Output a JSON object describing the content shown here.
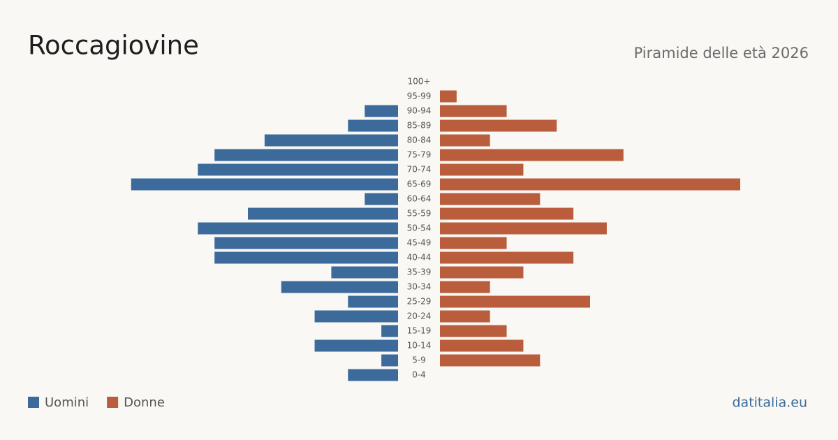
{
  "chart_data": {
    "type": "pyramid",
    "title": "Roccagiovine",
    "subtitle": "Piramide delle età 2026",
    "categories": [
      "100+",
      "95-99",
      "90-94",
      "85-89",
      "80-84",
      "75-79",
      "70-74",
      "65-69",
      "60-64",
      "55-59",
      "50-54",
      "45-49",
      "40-44",
      "35-39",
      "30-34",
      "25-29",
      "20-24",
      "15-19",
      "10-14",
      "5-9",
      "0-4"
    ],
    "series": [
      {
        "name": "Uomini",
        "color": "#3b6a9b",
        "values": [
          0,
          0,
          2,
          3,
          8,
          11,
          12,
          16,
          2,
          9,
          12,
          11,
          11,
          4,
          7,
          3,
          5,
          1,
          5,
          1,
          3
        ]
      },
      {
        "name": "Donne",
        "color": "#b95d3d",
        "values": [
          0,
          1,
          4,
          7,
          3,
          11,
          5,
          18,
          6,
          8,
          10,
          4,
          8,
          5,
          3,
          9,
          3,
          4,
          5,
          6,
          0
        ]
      }
    ],
    "source": "datitalia.eu"
  }
}
